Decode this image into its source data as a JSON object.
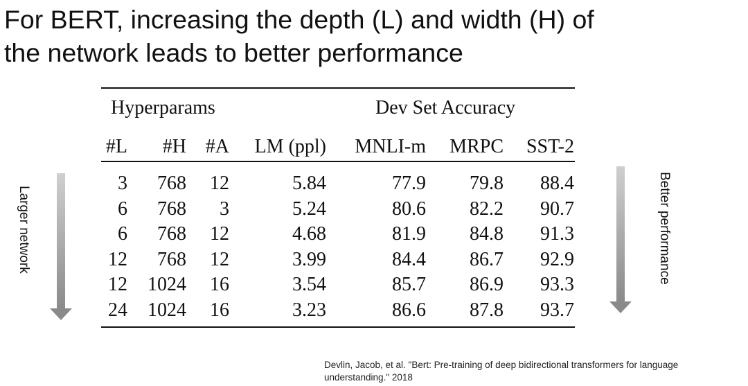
{
  "slide": {
    "title_lines": [
      "For BERT, increasing the depth (L) and width (H) of",
      "the network leads to better performance"
    ]
  },
  "table": {
    "group_headers": [
      "Hyperparams",
      "Dev Set Accuracy"
    ],
    "columns": [
      "#L",
      "#H",
      "#A",
      "LM (ppl)",
      "MNLI-m",
      "MRPC",
      "SST-2"
    ],
    "rows": [
      [
        "3",
        "768",
        "12",
        "5.84",
        "77.9",
        "79.8",
        "88.4"
      ],
      [
        "6",
        "768",
        "3",
        "5.24",
        "80.6",
        "82.2",
        "90.7"
      ],
      [
        "6",
        "768",
        "12",
        "4.68",
        "81.9",
        "84.8",
        "91.3"
      ],
      [
        "12",
        "768",
        "12",
        "3.99",
        "84.4",
        "86.7",
        "92.9"
      ],
      [
        "12",
        "1024",
        "16",
        "3.54",
        "85.7",
        "86.9",
        "93.3"
      ],
      [
        "24",
        "1024",
        "16",
        "3.23",
        "86.6",
        "87.8",
        "93.7"
      ]
    ]
  },
  "annotations": {
    "left_label": "Larger network",
    "right_label": "Better performance"
  },
  "citation_lines": [
    "Devlin, Jacob, et al. \"Bert: Pre-training of deep bidirectional transformers for language",
    "understanding.\" 2018"
  ]
}
